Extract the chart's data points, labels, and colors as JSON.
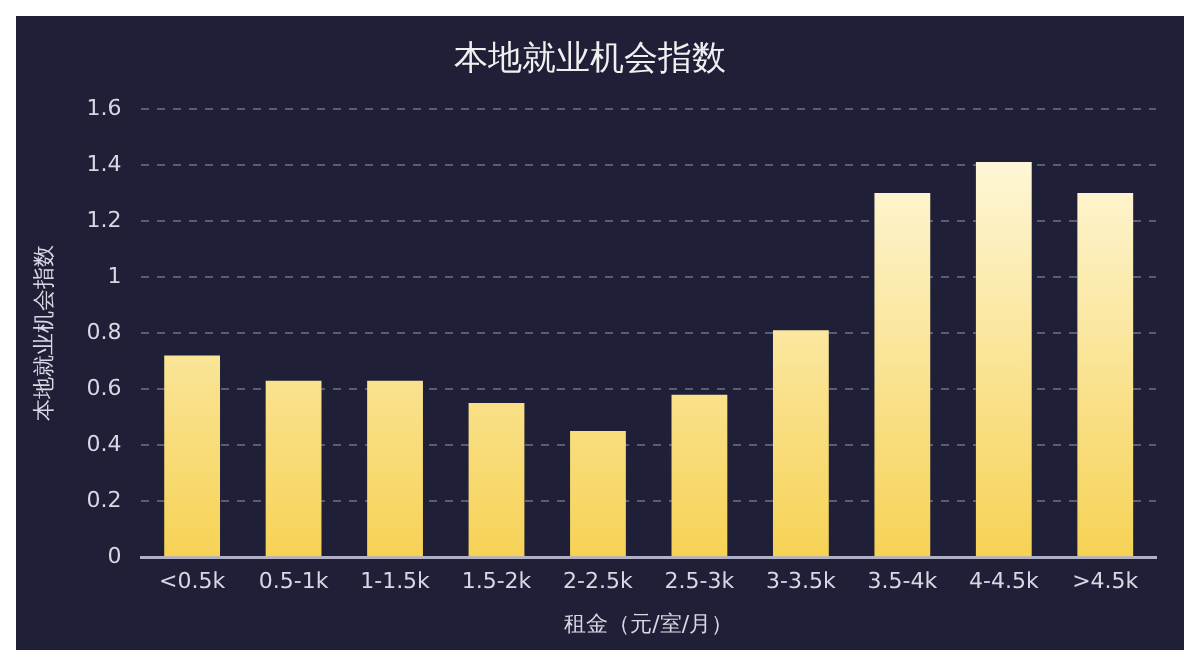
{
  "chart_data": {
    "type": "bar",
    "title": "本地就业机会指数",
    "xlabel": "租金（元/室/月）",
    "ylabel": "本地就业机会指数",
    "categories": [
      "<0.5k",
      "0.5-1k",
      "1-1.5k",
      "1.5-2k",
      "2-2.5k",
      "2.5-3k",
      "3-3.5k",
      "3.5-4k",
      "4-4.5k",
      ">4.5k"
    ],
    "values": [
      0.72,
      0.63,
      0.63,
      0.55,
      0.45,
      0.58,
      0.81,
      1.3,
      1.41,
      1.3
    ],
    "color": "#f6d255",
    "ylim": [
      0,
      1.6
    ],
    "yticks": [
      0,
      0.2,
      0.4,
      0.6,
      0.8,
      1,
      1.2,
      1.4,
      1.6
    ],
    "grid": "y"
  }
}
